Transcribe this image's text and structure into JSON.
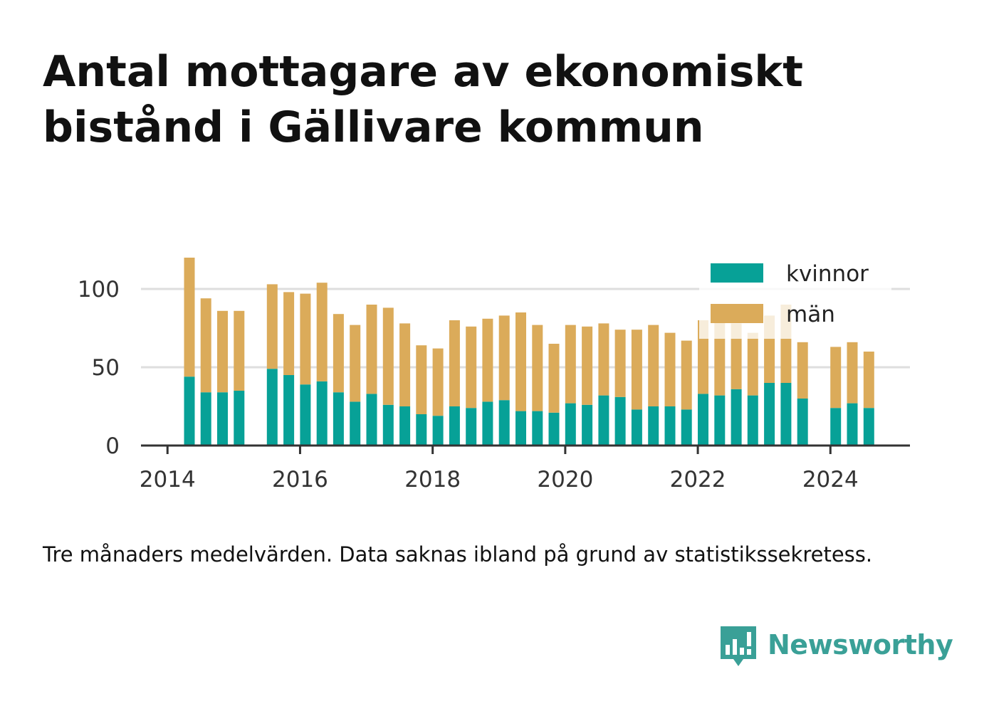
{
  "title": "Antal mottagare av ekonomiskt bistånd i Gällivare kommun",
  "note": "Tre månaders medelvärden. Data saknas ibland på grund av statistikssekretess.",
  "brand": {
    "name": "Newsworthy",
    "logo_icon": "bar-chart-speech-bubble-icon",
    "color": "#3aa097"
  },
  "chart_data": {
    "type": "bar",
    "stacked": true,
    "x_ticks": [
      "2014",
      "2016",
      "2018",
      "2020",
      "2022",
      "2024"
    ],
    "y_ticks": [
      0,
      50,
      100
    ],
    "ylim": [
      0,
      120
    ],
    "xlim": [
      2013.6,
      2025.2
    ],
    "grid": true,
    "legend_position": "top-right",
    "x": [
      2014.33,
      2014.58,
      2014.83,
      2015.08,
      2015.58,
      2015.83,
      2016.08,
      2016.33,
      2016.58,
      2016.83,
      2017.08,
      2017.33,
      2017.58,
      2017.83,
      2018.08,
      2018.33,
      2018.58,
      2018.83,
      2019.08,
      2019.33,
      2019.58,
      2019.83,
      2020.08,
      2020.33,
      2020.58,
      2020.83,
      2021.08,
      2021.33,
      2021.58,
      2021.83,
      2022.08,
      2022.33,
      2022.58,
      2022.83,
      2023.08,
      2023.33,
      2023.58,
      2024.08,
      2024.33,
      2024.58
    ],
    "series": [
      {
        "name": "kvinnor",
        "color": "#07a197",
        "values": [
          44,
          34,
          34,
          35,
          49,
          45,
          39,
          41,
          34,
          28,
          33,
          26,
          25,
          20,
          19,
          25,
          24,
          28,
          29,
          22,
          22,
          21,
          27,
          26,
          32,
          31,
          23,
          25,
          25,
          23,
          33,
          32,
          36,
          32,
          40,
          40,
          30,
          24,
          27,
          24
        ]
      },
      {
        "name": "män",
        "color": "#dbab5a",
        "values": [
          76,
          60,
          52,
          51,
          54,
          53,
          58,
          63,
          50,
          49,
          57,
          62,
          53,
          44,
          43,
          55,
          52,
          53,
          54,
          63,
          55,
          44,
          50,
          50,
          46,
          43,
          51,
          52,
          47,
          44,
          47,
          50,
          42,
          40,
          43,
          50,
          36,
          39,
          39,
          36
        ]
      }
    ]
  }
}
